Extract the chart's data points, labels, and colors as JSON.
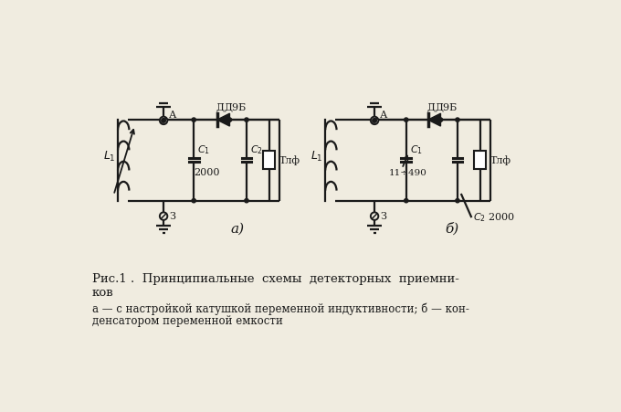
{
  "bg_color": "#f0ece0",
  "line_color": "#1a1a1a",
  "title_line1": "Рис.1 .  Принципиальные  схемы  детекторных  приемни-",
  "title_line2": "ков",
  "caption_line1": "а — с настройкой катушкой переменной индуктивности; б — кон-",
  "caption_line2": "денсатором переменной емкости",
  "label_a": "а)",
  "label_b": "б)",
  "figsize": [
    6.8,
    4.51
  ],
  "dpi": 100
}
